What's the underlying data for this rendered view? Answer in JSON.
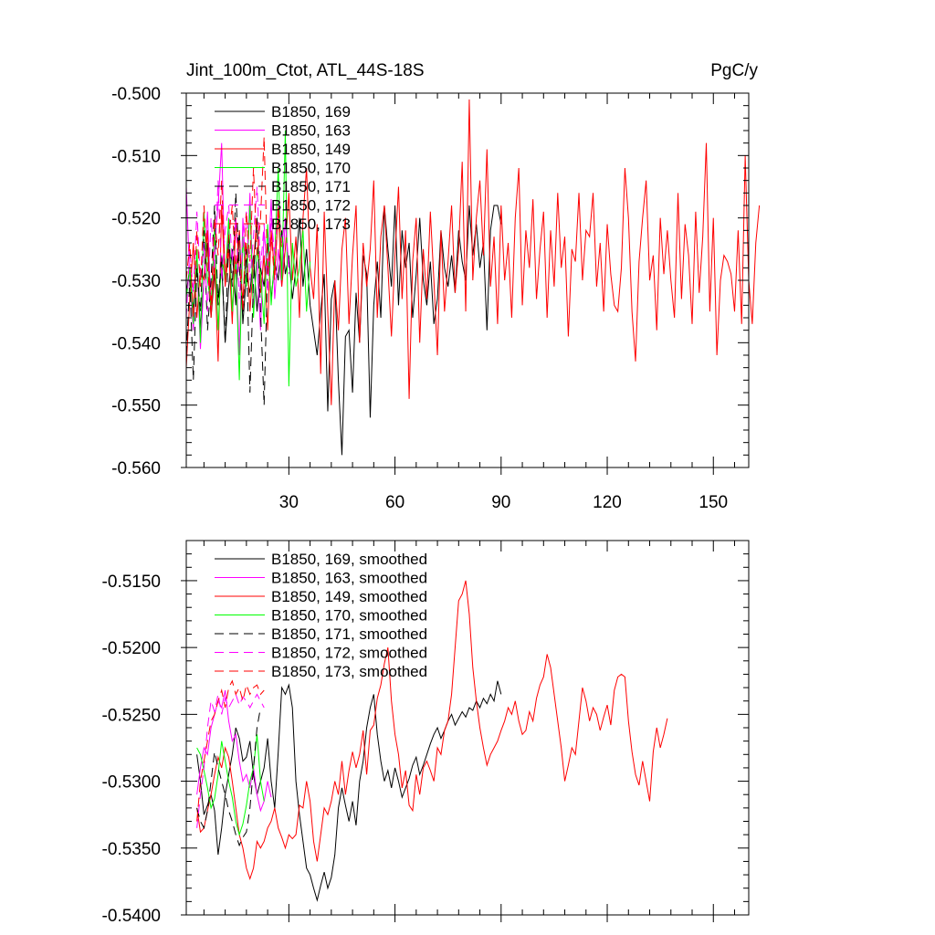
{
  "chart_data": [
    {
      "type": "line",
      "title_left": "Jint_100m_Ctot, ATL_44S-18S",
      "title_right": "PgC/y",
      "xlabel": "",
      "ylabel": "",
      "xlim": [
        1,
        160
      ],
      "ylim": [
        -0.56,
        -0.5
      ],
      "xticks": [
        30,
        60,
        90,
        120,
        150
      ],
      "xtick_labels": [
        "30",
        "60",
        "90",
        "120",
        "150"
      ],
      "yticks": [
        -0.5,
        -0.51,
        -0.52,
        -0.53,
        -0.54,
        -0.55,
        -0.56
      ],
      "ytick_labels": [
        "-0.500",
        "-0.510",
        "-0.520",
        "-0.530",
        "-0.540",
        "-0.550",
        "-0.560"
      ],
      "legend_position": "top-left",
      "series": [
        {
          "name": "B1850, 169",
          "color": "#000000",
          "dash": "solid",
          "start_x": 1,
          "values": [
            -0.532,
            -0.528,
            -0.535,
            -0.526,
            -0.538,
            -0.53,
            -0.524,
            -0.536,
            -0.529,
            -0.533,
            -0.527,
            -0.54,
            -0.531,
            -0.525,
            -0.534,
            -0.522,
            -0.537,
            -0.529,
            -0.532,
            -0.526,
            -0.535,
            -0.528,
            -0.531,
            -0.524,
            -0.533,
            -0.527,
            -0.53,
            -0.522,
            -0.529,
            -0.526,
            -0.533,
            -0.528,
            -0.52,
            -0.531,
            -0.525,
            -0.534,
            -0.538,
            -0.542,
            -0.535,
            -0.529,
            -0.551,
            -0.533,
            -0.53,
            -0.546,
            -0.558,
            -0.539,
            -0.538,
            -0.548,
            -0.532,
            -0.54,
            -0.526,
            -0.529,
            -0.552,
            -0.534,
            -0.527,
            -0.536,
            -0.518,
            -0.525,
            -0.531,
            -0.518,
            -0.534,
            -0.522,
            -0.528,
            -0.524,
            -0.536,
            -0.529,
            -0.52,
            -0.53,
            -0.534,
            -0.527,
            -0.537,
            -0.533,
            -0.522,
            -0.528,
            -0.531,
            -0.526,
            -0.532,
            -0.522,
            -0.527,
            -0.53,
            -0.518,
            -0.526,
            -0.521,
            -0.528,
            -0.524,
            -0.538,
            -0.522,
            -0.518,
            -0.518,
            -0.521
          ]
        },
        {
          "name": "B1850, 163",
          "color": "#ff00ff",
          "dash": "solid",
          "start_x": 1,
          "values": [
            -0.515,
            -0.53,
            -0.538,
            -0.527,
            -0.541,
            -0.53,
            -0.519,
            -0.535,
            -0.524,
            -0.518,
            -0.508,
            -0.531,
            -0.522,
            -0.536,
            -0.526,
            -0.542,
            -0.52,
            -0.53,
            -0.516,
            -0.534,
            -0.527,
            -0.538,
            -0.522,
            -0.529,
            -0.517,
            -0.533,
            -0.525,
            -0.531,
            -0.52,
            -0.528
          ]
        },
        {
          "name": "B1850, 149",
          "color": "#ff0000",
          "dash": "solid",
          "start_x": 1,
          "values": [
            -0.544,
            -0.533,
            -0.524,
            -0.536,
            -0.528,
            -0.53,
            -0.522,
            -0.536,
            -0.527,
            -0.543,
            -0.518,
            -0.531,
            -0.525,
            -0.537,
            -0.52,
            -0.528,
            -0.533,
            -0.524,
            -0.535,
            -0.527,
            -0.52,
            -0.532,
            -0.526,
            -0.538,
            -0.522,
            -0.529,
            -0.519,
            -0.531,
            -0.525,
            -0.516,
            -0.53,
            -0.523,
            -0.536,
            -0.52,
            -0.512,
            -0.528,
            -0.533,
            -0.521,
            -0.545,
            -0.519,
            -0.535,
            -0.55,
            -0.53,
            -0.538,
            -0.525,
            -0.52,
            -0.537,
            -0.526,
            -0.518,
            -0.54,
            -0.524,
            -0.531,
            -0.525,
            -0.514,
            -0.536,
            -0.523,
            -0.518,
            -0.528,
            -0.539,
            -0.526,
            -0.515,
            -0.533,
            -0.522,
            -0.549,
            -0.527,
            -0.52,
            -0.54,
            -0.525,
            -0.533,
            -0.519,
            -0.53,
            -0.542,
            -0.522,
            -0.535,
            -0.527,
            -0.518,
            -0.532,
            -0.525,
            -0.511,
            -0.535,
            -0.501,
            -0.53,
            -0.52,
            -0.514,
            -0.526,
            -0.509,
            -0.531,
            -0.523,
            -0.537,
            -0.518,
            -0.53,
            -0.524,
            -0.536,
            -0.52,
            -0.512,
            -0.534,
            -0.522,
            -0.528,
            -0.517,
            -0.533,
            -0.525,
            -0.519,
            -0.536,
            -0.522,
            -0.531,
            -0.516,
            -0.528,
            -0.523,
            -0.539,
            -0.525,
            -0.527,
            -0.516,
            -0.53,
            -0.522,
            -0.523,
            -0.516,
            -0.531,
            -0.524,
            -0.535,
            -0.521,
            -0.529,
            -0.534,
            -0.535,
            -0.528,
            -0.512,
            -0.52,
            -0.535,
            -0.543,
            -0.527,
            -0.52,
            -0.514,
            -0.53,
            -0.526,
            -0.538,
            -0.52,
            -0.529,
            -0.522,
            -0.53,
            -0.536,
            -0.516,
            -0.533,
            -0.521,
            -0.526,
            -0.537,
            -0.519,
            -0.532,
            -0.523,
            -0.508,
            -0.535,
            -0.52,
            -0.542,
            -0.53,
            -0.526,
            -0.527,
            -0.529,
            -0.535,
            -0.522,
            -0.537,
            -0.51,
            -0.53,
            -0.537,
            -0.524,
            -0.518
          ]
        },
        {
          "name": "B1850, 170",
          "color": "#00ff00",
          "dash": "solid",
          "start_x": 1,
          "values": [
            -0.533,
            -0.528,
            -0.537,
            -0.525,
            -0.54,
            -0.519,
            -0.53,
            -0.534,
            -0.522,
            -0.538,
            -0.526,
            -0.53,
            -0.52,
            -0.535,
            -0.527,
            -0.546,
            -0.523,
            -0.531,
            -0.518,
            -0.536,
            -0.525,
            -0.529,
            -0.537,
            -0.521,
            -0.534,
            -0.526,
            -0.512,
            -0.53,
            -0.506,
            -0.547,
            -0.524,
            -0.531,
            -0.528,
            -0.522,
            -0.535,
            -0.527
          ]
        },
        {
          "name": "B1850, 171",
          "color": "#000000",
          "dash": "dashed",
          "start_x": 1,
          "values": [
            -0.542,
            -0.53,
            -0.546,
            -0.528,
            -0.535,
            -0.522,
            -0.538,
            -0.53,
            -0.518,
            -0.534,
            -0.526,
            -0.54,
            -0.523,
            -0.531,
            -0.516,
            -0.528,
            -0.535,
            -0.525,
            -0.548,
            -0.53,
            -0.52,
            -0.535,
            -0.55,
            -0.528
          ]
        },
        {
          "name": "B1850, 172",
          "color": "#ff00ff",
          "dash": "dashed",
          "start_x": 1,
          "values": [
            -0.536,
            -0.525,
            -0.532,
            -0.519,
            -0.53,
            -0.524,
            -0.535,
            -0.52,
            -0.528,
            -0.514,
            -0.53,
            -0.522,
            -0.518,
            -0.527,
            -0.52,
            -0.533,
            -0.524,
            -0.519,
            -0.53,
            -0.523,
            -0.515,
            -0.528,
            -0.521,
            -0.532,
            -0.52,
            -0.526,
            -0.518,
            -0.524,
            -0.52,
            -0.529
          ]
        },
        {
          "name": "B1850, 173",
          "color": "#ff0000",
          "dash": "dashed",
          "start_x": 1,
          "values": [
            -0.53,
            -0.524,
            -0.536,
            -0.522,
            -0.531,
            -0.518,
            -0.528,
            -0.534,
            -0.52,
            -0.526,
            -0.514,
            -0.53,
            -0.523,
            -0.518,
            -0.529,
            -0.522,
            -0.535,
            -0.519,
            -0.527,
            -0.512,
            -0.526,
            -0.52,
            -0.507,
            -0.529,
            -0.523,
            -0.53,
            -0.518,
            -0.525
          ]
        }
      ]
    },
    {
      "type": "line",
      "title_left": "",
      "title_right": "",
      "xlabel": "",
      "ylabel": "",
      "xlim": [
        1,
        160
      ],
      "ylim": [
        -0.54,
        -0.512
      ],
      "xticks": [
        30,
        60,
        90,
        120,
        150
      ],
      "xtick_labels": [],
      "yticks": [
        -0.515,
        -0.52,
        -0.525,
        -0.53,
        -0.535,
        -0.54
      ],
      "ytick_labels": [
        "-0.5150",
        "-0.5200",
        "-0.5250",
        "-0.5300",
        "-0.5350",
        "-0.5400"
      ],
      "legend_position": "top-left",
      "series": [
        {
          "name": "B1850, 169, smoothed",
          "color": "#000000",
          "dash": "solid",
          "start_x": 4,
          "values": [
            -0.528,
            -0.53,
            -0.5325,
            -0.5318,
            -0.531,
            -0.5322,
            -0.5355,
            -0.5335,
            -0.531,
            -0.5295,
            -0.528,
            -0.526,
            -0.5268,
            -0.5285,
            -0.5282,
            -0.527,
            -0.5295,
            -0.531,
            -0.53,
            -0.529,
            -0.5268,
            -0.53,
            -0.532,
            -0.5278,
            -0.523,
            -0.5235,
            -0.5228,
            -0.5245,
            -0.53,
            -0.5325,
            -0.5345,
            -0.5365,
            -0.537,
            -0.538,
            -0.5389,
            -0.5378,
            -0.5368,
            -0.538,
            -0.5372,
            -0.5355,
            -0.532,
            -0.5305,
            -0.5318,
            -0.533,
            -0.5315,
            -0.5333,
            -0.53,
            -0.5285,
            -0.526,
            -0.5245,
            -0.5235,
            -0.5265,
            -0.5285,
            -0.53,
            -0.5292,
            -0.5305,
            -0.529,
            -0.53,
            -0.5312,
            -0.5305,
            -0.5298,
            -0.5288,
            -0.5282,
            -0.5295,
            -0.5288,
            -0.528,
            -0.5272,
            -0.5265,
            -0.526,
            -0.5268,
            -0.5262,
            -0.5255,
            -0.525,
            -0.5258,
            -0.5253,
            -0.5248,
            -0.5252,
            -0.5245,
            -0.5247,
            -0.524,
            -0.5245,
            -0.5238,
            -0.5242,
            -0.5235,
            -0.524,
            -0.5225,
            -0.5235
          ]
        },
        {
          "name": "B1850, 163, smoothed",
          "color": "#ff00ff",
          "dash": "solid",
          "start_x": 4,
          "values": [
            -0.531,
            -0.529,
            -0.5275,
            -0.528,
            -0.526,
            -0.525,
            -0.524,
            -0.5245,
            -0.5232,
            -0.5255,
            -0.527,
            -0.5265,
            -0.5285,
            -0.53,
            -0.5295,
            -0.5305,
            -0.529,
            -0.531,
            -0.5322,
            -0.5315,
            -0.53,
            -0.5312
          ]
        },
        {
          "name": "B1850, 149, smoothed",
          "color": "#ff0000",
          "dash": "solid",
          "start_x": 4,
          "values": [
            -0.532,
            -0.5338,
            -0.5335,
            -0.5322,
            -0.531,
            -0.5295,
            -0.5282,
            -0.529,
            -0.5275,
            -0.5282,
            -0.53,
            -0.532,
            -0.534,
            -0.535,
            -0.5365,
            -0.5373,
            -0.5365,
            -0.5345,
            -0.535,
            -0.5345,
            -0.5335,
            -0.533,
            -0.532,
            -0.5335,
            -0.5342,
            -0.535,
            -0.534,
            -0.5343,
            -0.534,
            -0.5318,
            -0.532,
            -0.53,
            -0.5315,
            -0.5345,
            -0.536,
            -0.534,
            -0.532,
            -0.5325,
            -0.5315,
            -0.53,
            -0.531,
            -0.5285,
            -0.531,
            -0.5292,
            -0.5278,
            -0.529,
            -0.528,
            -0.5262,
            -0.5295,
            -0.5262,
            -0.5258,
            -0.5238,
            -0.5228,
            -0.5212,
            -0.52,
            -0.524,
            -0.5265,
            -0.528,
            -0.5305,
            -0.5292,
            -0.5318,
            -0.5322,
            -0.5295,
            -0.531,
            -0.529,
            -0.5285,
            -0.5292,
            -0.53,
            -0.5275,
            -0.528,
            -0.5262,
            -0.5255,
            -0.5235,
            -0.52,
            -0.5165,
            -0.516,
            -0.515,
            -0.5175,
            -0.5215,
            -0.524,
            -0.526,
            -0.5275,
            -0.5288,
            -0.528,
            -0.5275,
            -0.527,
            -0.5262,
            -0.5255,
            -0.5245,
            -0.525,
            -0.524,
            -0.5255,
            -0.5265,
            -0.5262,
            -0.5248,
            -0.5255,
            -0.5238,
            -0.5228,
            -0.5222,
            -0.5205,
            -0.5215,
            -0.5235,
            -0.5255,
            -0.5275,
            -0.53,
            -0.5288,
            -0.5275,
            -0.528,
            -0.5255,
            -0.523,
            -0.524,
            -0.5255,
            -0.5245,
            -0.525,
            -0.5262,
            -0.5252,
            -0.5243,
            -0.5258,
            -0.5232,
            -0.5222,
            -0.522,
            -0.5222,
            -0.5255,
            -0.5278,
            -0.5295,
            -0.5303,
            -0.5285,
            -0.53,
            -0.5315,
            -0.5278,
            -0.526,
            -0.5275,
            -0.5265,
            -0.5253
          ]
        },
        {
          "name": "B1850, 170, smoothed",
          "color": "#00ff00",
          "dash": "solid",
          "start_x": 4,
          "values": [
            -0.5275,
            -0.528,
            -0.5292,
            -0.5305,
            -0.532,
            -0.5313,
            -0.5295,
            -0.527,
            -0.5285,
            -0.53,
            -0.5312,
            -0.533,
            -0.534,
            -0.5332,
            -0.5318,
            -0.53,
            -0.529,
            -0.5265,
            -0.53,
            -0.5315
          ]
        },
        {
          "name": "B1850, 171, smoothed",
          "color": "#000000",
          "dash": "dashed",
          "start_x": 4,
          "values": [
            -0.532,
            -0.533,
            -0.5335,
            -0.5322,
            -0.53,
            -0.5278,
            -0.529,
            -0.53,
            -0.531,
            -0.5322,
            -0.533,
            -0.534,
            -0.5348,
            -0.5342,
            -0.5338,
            -0.532,
            -0.529,
            -0.526,
            -0.5245
          ]
        },
        {
          "name": "B1850, 172, smoothed",
          "color": "#ff00ff",
          "dash": "dashed",
          "start_x": 4,
          "values": [
            -0.5335,
            -0.531,
            -0.529,
            -0.526,
            -0.524,
            -0.5248,
            -0.5235,
            -0.525,
            -0.5238,
            -0.5245,
            -0.524,
            -0.5235,
            -0.5243,
            -0.5237,
            -0.524,
            -0.5245,
            -0.524,
            -0.5235,
            -0.524,
            -0.5245
          ]
        },
        {
          "name": "B1850, 173, smoothed",
          "color": "#ff0000",
          "dash": "dashed",
          "start_x": 4,
          "values": [
            -0.533,
            -0.53,
            -0.5285,
            -0.527,
            -0.5255,
            -0.525,
            -0.524,
            -0.5232,
            -0.5245,
            -0.523,
            -0.5225,
            -0.5235,
            -0.523,
            -0.524,
            -0.5228,
            -0.5235,
            -0.523,
            -0.5228,
            -0.5235,
            -0.5232
          ]
        }
      ]
    }
  ]
}
